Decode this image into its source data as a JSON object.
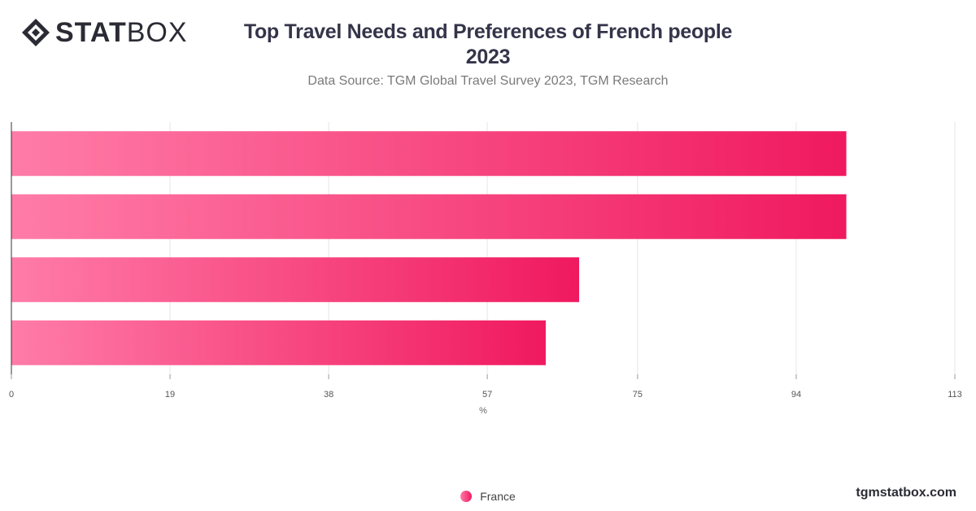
{
  "logo": {
    "part1": "STAT",
    "part2": "BOX"
  },
  "header": {
    "title_line1": "Top Travel Needs and Preferences of French people",
    "title_line2": "2023",
    "subtitle": "Data Source: TGM Global Travel Survey 2023, TGM Research"
  },
  "footer": {
    "brand": "tgmstatbox.com"
  },
  "chart_data": {
    "type": "bar",
    "orientation": "horizontal",
    "title": "Top Travel Needs and Preferences of French people 2023",
    "subtitle": "Data Source: TGM Global Travel Survey 2023, TGM Research",
    "xlabel": "%",
    "ylabel": "",
    "xlim": [
      0,
      113
    ],
    "ticks": [
      0,
      19,
      38,
      57,
      75,
      94,
      113
    ],
    "categories": [
      "",
      "",
      "",
      ""
    ],
    "series": [
      {
        "name": "France",
        "values": [
          100,
          100,
          68,
          64
        ]
      }
    ],
    "legend_position": "bottom-center",
    "grid": true,
    "colors": {
      "bar_start": "#ff7ca8",
      "bar_end": "#f0195f",
      "grid": "#e6e6e6",
      "axis": "#333333"
    }
  }
}
